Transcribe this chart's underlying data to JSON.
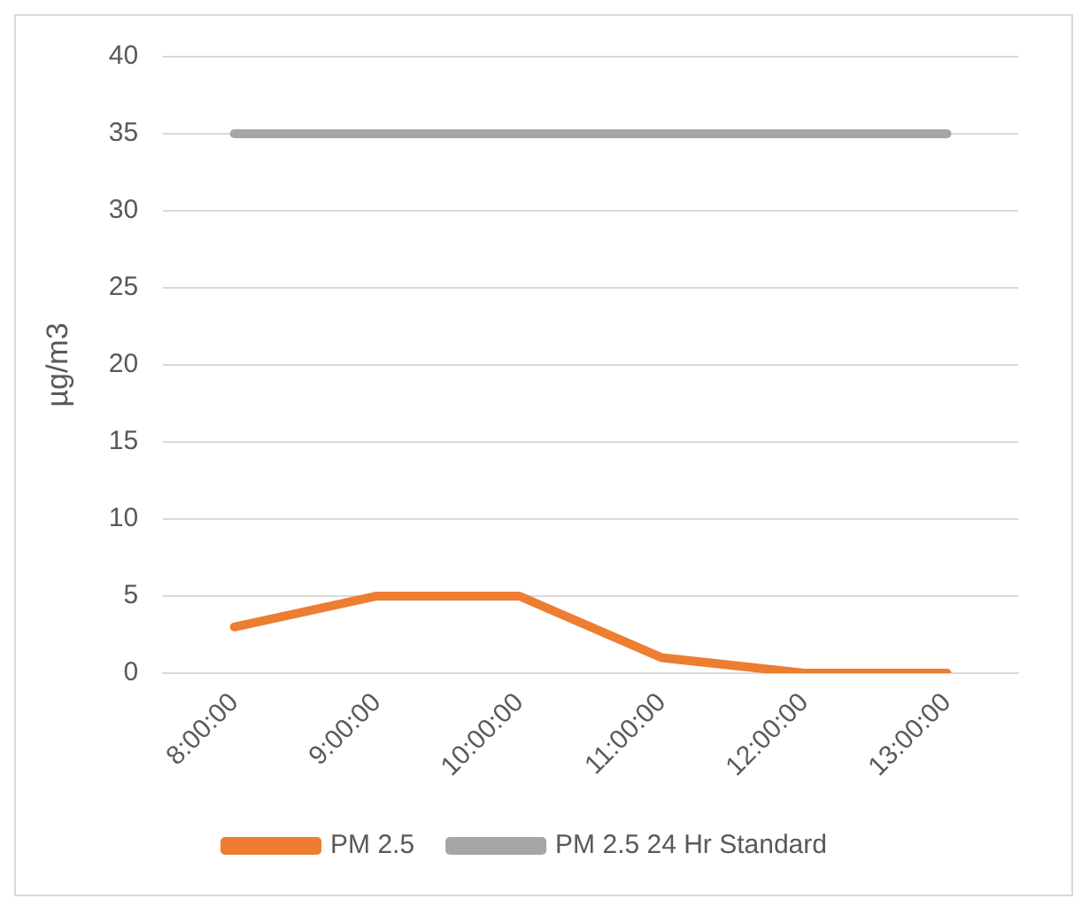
{
  "chart_data": {
    "type": "line",
    "ylabel": "µg/m3",
    "categories": [
      "8:00:00",
      "9:00:00",
      "10:00:00",
      "11:00:00",
      "12:00:00",
      "13:00:00"
    ],
    "series": [
      {
        "name": "PM 2.5",
        "color": "#ed7d31",
        "values": [
          3,
          5,
          5,
          1,
          0,
          0
        ]
      },
      {
        "name": "PM 2.5 24 Hr Standard",
        "color": "#a5a5a5",
        "values": [
          35,
          35,
          35,
          35,
          35,
          35
        ]
      }
    ],
    "ylim": [
      0,
      40
    ],
    "yticks": [
      0,
      5,
      10,
      15,
      20,
      25,
      30,
      35,
      40
    ],
    "grid": "y",
    "legend": "bottom",
    "marker": "none",
    "line_style": "solid"
  }
}
